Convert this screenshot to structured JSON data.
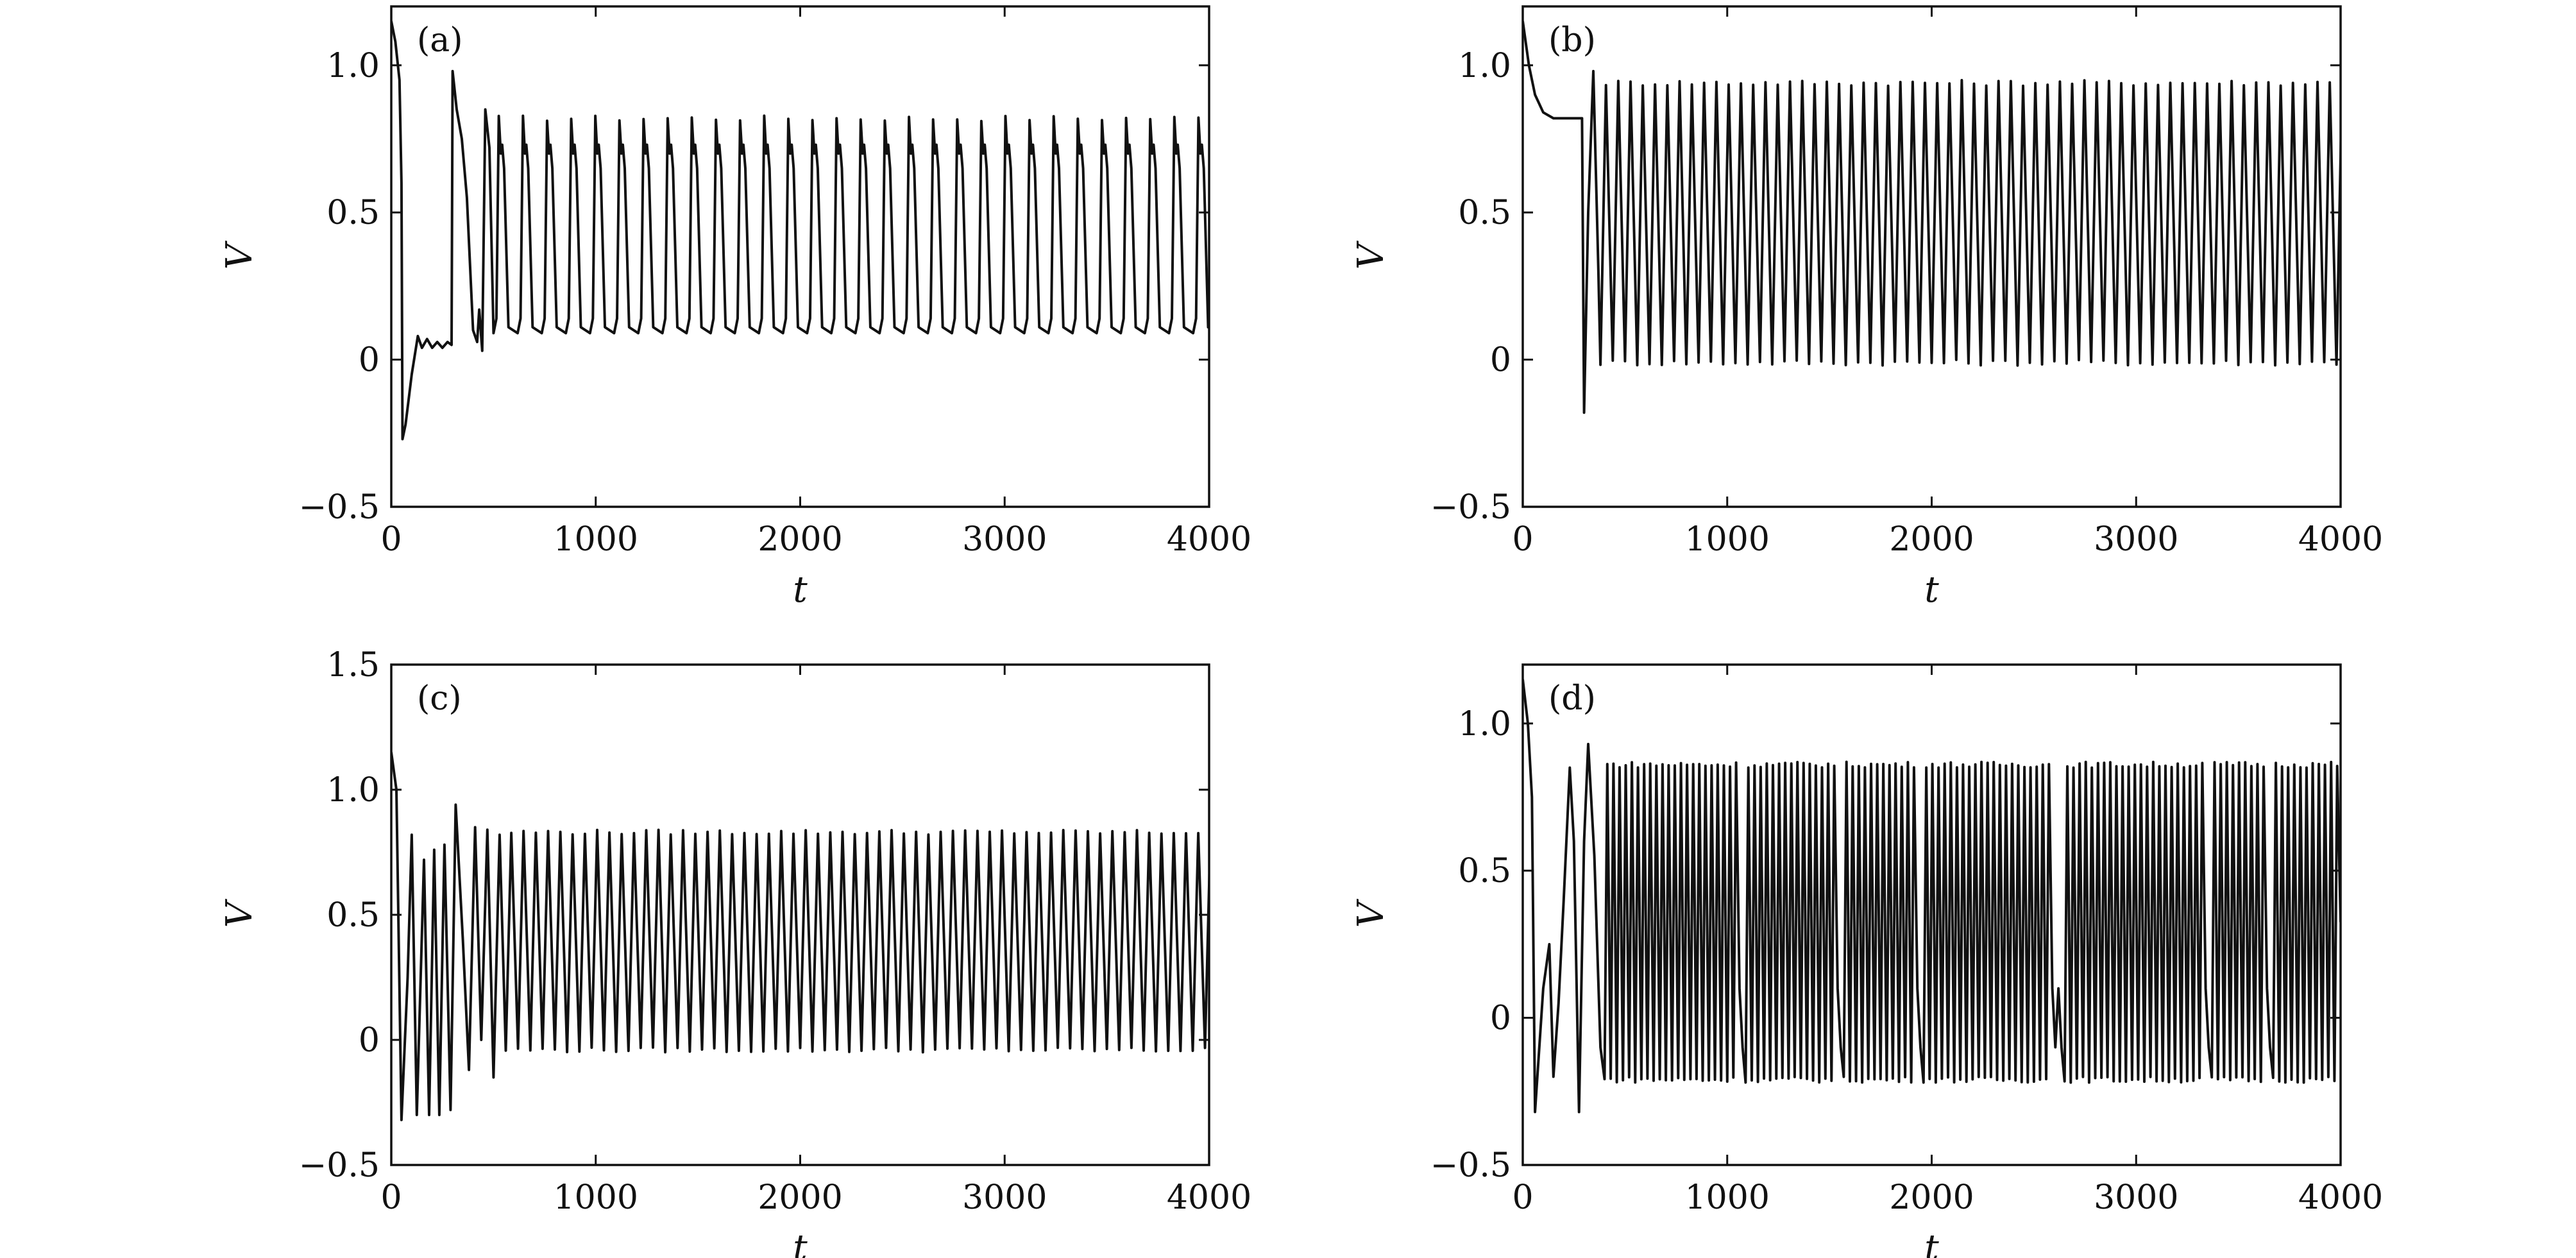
{
  "colors": {
    "line": "#111111",
    "axis": "#111111",
    "background": "#ffffff"
  },
  "chart_data": [
    {
      "type": "line",
      "panel_label": "(a)",
      "xlabel": "t",
      "ylabel": "V",
      "xlim": [
        0,
        4000
      ],
      "ylim": [
        -0.5,
        1.2
      ],
      "xticks": [
        "0",
        "1000",
        "2000",
        "3000",
        "4000"
      ],
      "yticks": [
        "−0.5",
        "0",
        "0.5",
        "1.0"
      ],
      "grid": false,
      "legend": "none",
      "series": [
        {
          "values": {
            "t_start": 0,
            "t_end": 4000,
            "transient": [
              [
                0,
                1.15
              ],
              [
                20,
                1.08
              ],
              [
                40,
                0.95
              ],
              [
                50,
                0.6
              ],
              [
                55,
                -0.27
              ],
              [
                70,
                -0.22
              ],
              [
                100,
                -0.05
              ],
              [
                130,
                0.08
              ],
              [
                150,
                0.04
              ],
              [
                175,
                0.07
              ],
              [
                200,
                0.04
              ],
              [
                225,
                0.06
              ],
              [
                250,
                0.04
              ],
              [
                275,
                0.06
              ],
              [
                295,
                0.05
              ],
              [
                300,
                0.98
              ],
              [
                320,
                0.85
              ],
              [
                345,
                0.75
              ],
              [
                370,
                0.55
              ],
              [
                400,
                0.1
              ],
              [
                420,
                0.06
              ],
              [
                430,
                0.17
              ],
              [
                445,
                0.03
              ],
              [
                460,
                0.85
              ],
              [
                480,
                0.72
              ]
            ],
            "oscillation_start": 500,
            "period": 118,
            "peak": 0.82,
            "shoulder": 0.7,
            "trough": 0.09
          }
        }
      ]
    },
    {
      "type": "line",
      "panel_label": "(b)",
      "xlabel": "t",
      "ylabel": "V",
      "xlim": [
        0,
        4000
      ],
      "ylim": [
        -0.5,
        1.2
      ],
      "xticks": [
        "0",
        "1000",
        "2000",
        "3000",
        "4000"
      ],
      "yticks": [
        "−0.5",
        "0",
        "0.5",
        "1.0"
      ],
      "grid": false,
      "legend": "none",
      "series": [
        {
          "values": {
            "t_start": 0,
            "t_end": 4000,
            "transient": [
              [
                0,
                1.15
              ],
              [
                30,
                1.0
              ],
              [
                60,
                0.9
              ],
              [
                100,
                0.84
              ],
              [
                150,
                0.82
              ],
              [
                200,
                0.82
              ],
              [
                290,
                0.82
              ],
              [
                300,
                -0.18
              ],
              [
                320,
                0.5
              ],
              [
                345,
                0.98
              ],
              [
                370,
                0.3
              ]
            ],
            "oscillation_start": 380,
            "period": 60,
            "peak": 0.94,
            "trough": -0.01
          }
        }
      ]
    },
    {
      "type": "line",
      "panel_label": "(c)",
      "xlabel": "t",
      "ylabel": "V",
      "xlim": [
        0,
        4000
      ],
      "ylim": [
        -0.5,
        1.5
      ],
      "xticks": [
        "0",
        "1000",
        "2000",
        "3000",
        "4000"
      ],
      "yticks": [
        "−0.5",
        "0",
        "0.5",
        "1.0",
        "1.5"
      ],
      "grid": false,
      "legend": "none",
      "series": [
        {
          "values": {
            "t_start": 0,
            "t_end": 4000,
            "transient": [
              [
                0,
                1.15
              ],
              [
                25,
                1.0
              ],
              [
                50,
                -0.32
              ],
              [
                80,
                0.25
              ],
              [
                100,
                0.82
              ],
              [
                125,
                -0.3
              ],
              [
                160,
                0.72
              ],
              [
                185,
                -0.3
              ],
              [
                210,
                0.76
              ],
              [
                235,
                -0.3
              ],
              [
                260,
                0.78
              ],
              [
                290,
                -0.28
              ],
              [
                315,
                0.94
              ],
              [
                350,
                0.4
              ],
              [
                380,
                -0.12
              ],
              [
                410,
                0.85
              ],
              [
                440,
                0.0
              ],
              [
                470,
                0.84
              ],
              [
                500,
                -0.15
              ],
              [
                530,
                0.82
              ]
            ],
            "oscillation_start": 560,
            "period": 60,
            "peak": 0.83,
            "trough": -0.04
          }
        }
      ]
    },
    {
      "type": "line",
      "panel_label": "(d)",
      "xlabel": "t",
      "ylabel": "V",
      "xlim": [
        0,
        4000
      ],
      "ylim": [
        -0.5,
        1.2
      ],
      "xticks": [
        "0",
        "1000",
        "2000",
        "3000",
        "4000"
      ],
      "yticks": [
        "−0.5",
        "0",
        "0.5",
        "1.0"
      ],
      "grid": false,
      "legend": "none",
      "series": [
        {
          "values": {
            "t_start": 0,
            "t_end": 4000,
            "transient": [
              [
                0,
                1.15
              ],
              [
                25,
                1.0
              ],
              [
                45,
                0.75
              ],
              [
                60,
                -0.32
              ],
              [
                100,
                0.1
              ],
              [
                130,
                0.25
              ],
              [
                150,
                -0.2
              ],
              [
                175,
                0.05
              ],
              [
                200,
                0.4
              ],
              [
                230,
                0.85
              ],
              [
                250,
                0.6
              ],
              [
                275,
                -0.32
              ],
              [
                300,
                0.6
              ],
              [
                320,
                0.93
              ],
              [
                350,
                0.55
              ],
              [
                380,
                -0.1
              ]
            ],
            "oscillation_start": 400,
            "period": 30,
            "peak": 0.86,
            "trough": -0.21,
            "bursts": [
              [
                400,
                1030
              ],
              [
                1070,
                1530
              ],
              [
                1560,
                1920
              ],
              [
                1950,
                2560
              ],
              [
                2640,
                3330
              ],
              [
                3370,
                3620
              ],
              [
                3650,
                4000
              ]
            ],
            "burst_end_dip": [
              -0.1,
              0.1
            ],
            "mid_level": 0.4
          }
        }
      ]
    }
  ]
}
